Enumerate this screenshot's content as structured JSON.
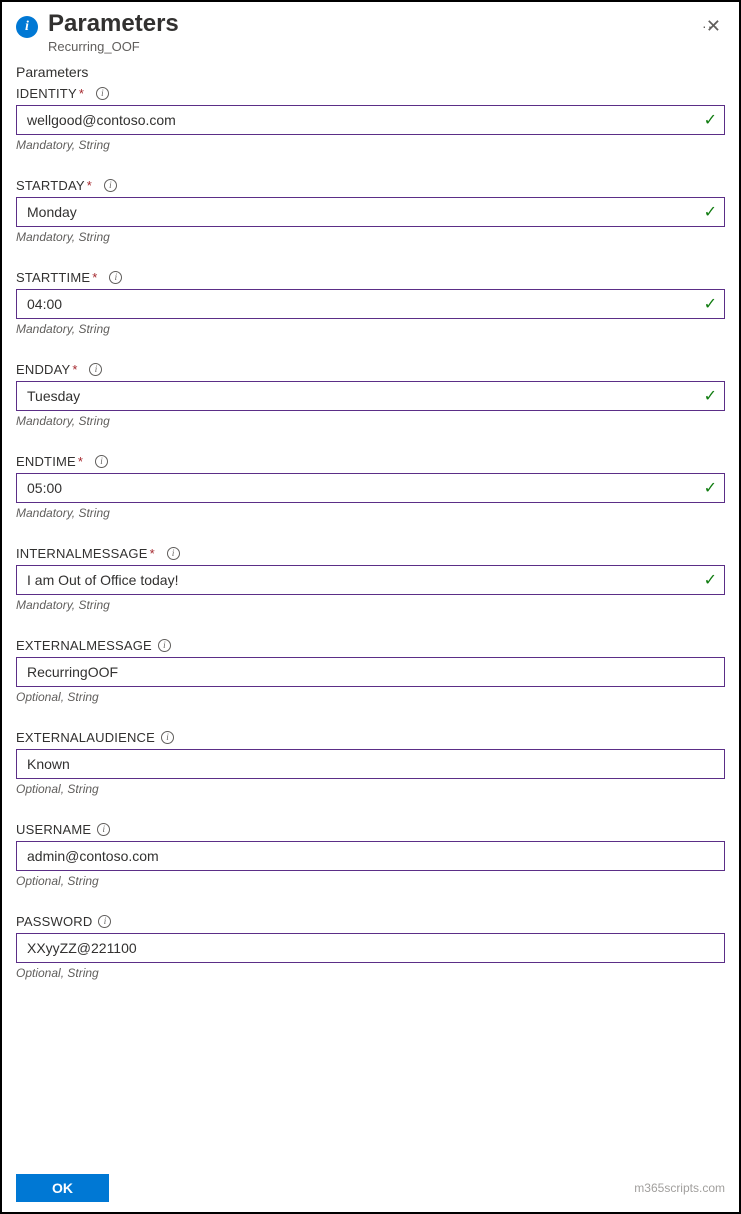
{
  "header": {
    "title": "Parameters",
    "subtitle": "Recurring_OOF"
  },
  "section_label": "Parameters",
  "fields": {
    "identity": {
      "label": "IDENTITY",
      "required": true,
      "value": "wellgood@contoso.com",
      "hint": "Mandatory, String",
      "validated": true
    },
    "startday": {
      "label": "STARTDAY",
      "required": true,
      "value": "Monday",
      "hint": "Mandatory, String",
      "validated": true
    },
    "starttime": {
      "label": "STARTTIME",
      "required": true,
      "value": "04:00",
      "hint": "Mandatory, String",
      "validated": true
    },
    "endday": {
      "label": "ENDDAY",
      "required": true,
      "value": "Tuesday",
      "hint": "Mandatory, String",
      "validated": true
    },
    "endtime": {
      "label": "ENDTIME",
      "required": true,
      "value": "05:00",
      "hint": "Mandatory, String",
      "validated": true
    },
    "internalmessage": {
      "label": "INTERNALMESSAGE",
      "required": true,
      "value": "I am Out of Office today!",
      "hint": "Mandatory, String",
      "validated": true
    },
    "externalmessage": {
      "label": "EXTERNALMESSAGE",
      "required": false,
      "value": "RecurringOOF",
      "hint": "Optional, String",
      "validated": false
    },
    "externalaudience": {
      "label": "EXTERNALAUDIENCE",
      "required": false,
      "value": "Known",
      "hint": "Optional, String",
      "validated": false
    },
    "username": {
      "label": "USERNAME",
      "required": false,
      "value": "admin@contoso.com",
      "hint": "Optional, String",
      "validated": false
    },
    "password": {
      "label": "PASSWORD",
      "required": false,
      "value": "XXyyZZ@221100",
      "hint": "Optional, String",
      "validated": false
    }
  },
  "buttons": {
    "ok": "OK"
  },
  "watermark": "m365scripts.com",
  "colors": {
    "primary": "#0078d4",
    "border": "#5b2e87",
    "success": "#107c10",
    "required": "#a4262c",
    "text": "#323130",
    "muted": "#605e5c"
  }
}
